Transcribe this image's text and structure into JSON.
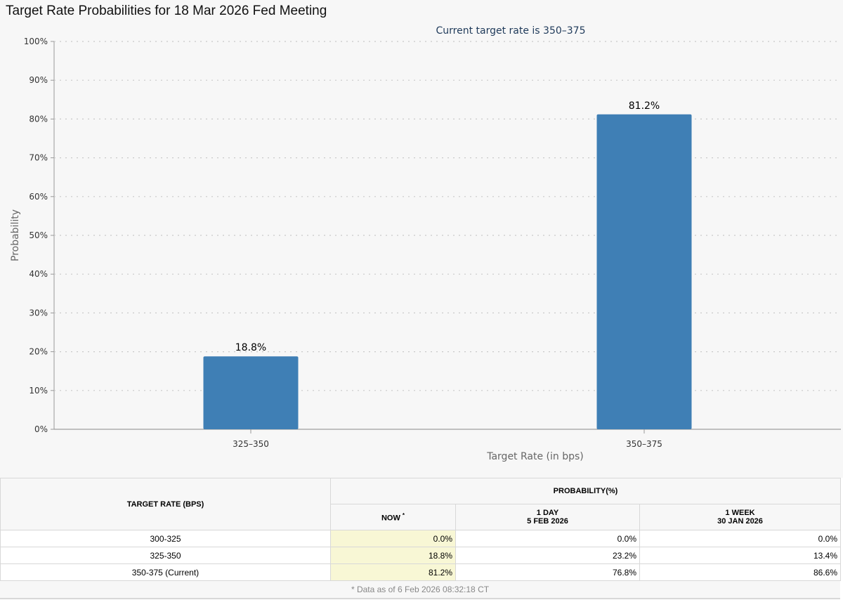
{
  "page_title": "Target Rate Probabilities for 18 Mar 2026 Fed Meeting",
  "chart_data": {
    "type": "bar",
    "subtitle": "Current target rate is 350–375",
    "categories": [
      "325–350",
      "350–375"
    ],
    "values": [
      18.8,
      81.2
    ],
    "data_labels": [
      "18.8%",
      "81.2%"
    ],
    "xlabel": "Target Rate (in bps)",
    "ylabel": "Probability",
    "ylim": [
      0,
      100
    ],
    "yticks": [
      0,
      10,
      20,
      30,
      40,
      50,
      60,
      70,
      80,
      90,
      100
    ],
    "ytick_labels": [
      "0%",
      "10%",
      "20%",
      "30%",
      "40%",
      "50%",
      "60%",
      "70%",
      "80%",
      "90%",
      "100%"
    ],
    "bar_color": "#3f7fb5",
    "grid": true,
    "legend": "none"
  },
  "table": {
    "col_rate_header": "TARGET RATE (BPS)",
    "probability_header": "PROBABILITY(%)",
    "now_header": "NOW",
    "now_marker": "*",
    "day_header": "1 DAY",
    "day_date": "5 FEB 2026",
    "week_header": "1 WEEK",
    "week_date": "30 JAN 2026",
    "rows": [
      {
        "rate": "300-325",
        "now": "0.0%",
        "day": "0.0%",
        "week": "0.0%"
      },
      {
        "rate": "325-350",
        "now": "18.8%",
        "day": "23.2%",
        "week": "13.4%"
      },
      {
        "rate": "350-375 (Current)",
        "now": "81.2%",
        "day": "76.8%",
        "week": "86.6%"
      }
    ],
    "footnote": "* Data as of 6 Feb 2026 08:32:18 CT"
  }
}
